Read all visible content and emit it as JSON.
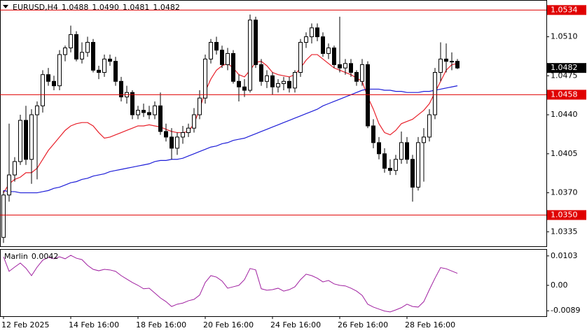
{
  "chart_data": [
    {
      "type": "candlestick",
      "title": "EURUSD,H4",
      "title_values": [
        "1.0488",
        "1.0490",
        "1.0481",
        "1.0482"
      ],
      "categories": [
        "12 Feb 2025",
        null,
        null,
        null,
        null,
        null,
        null,
        null,
        null,
        null,
        null,
        null,
        "14 Feb 16:00",
        null,
        null,
        null,
        null,
        null,
        null,
        null,
        null,
        null,
        null,
        null,
        "18 Feb 16:00",
        null,
        null,
        null,
        null,
        null,
        null,
        null,
        null,
        null,
        null,
        null,
        "20 Feb 16:00",
        null,
        null,
        null,
        null,
        null,
        null,
        null,
        null,
        null,
        null,
        null,
        "24 Feb 16:00",
        null,
        null,
        null,
        null,
        null,
        null,
        null,
        null,
        null,
        null,
        null,
        "26 Feb 16:00",
        null,
        null,
        null,
        null,
        null,
        null,
        null,
        null,
        null,
        null,
        null,
        "28 Feb 16:00",
        null,
        null,
        null,
        null,
        null,
        null,
        null,
        null,
        null
      ],
      "open": [
        1.033,
        1.0368,
        1.0386,
        1.0398,
        1.0435,
        1.04,
        1.044,
        1.0448,
        1.0476,
        1.047,
        1.0466,
        1.0494,
        1.05,
        1.0512,
        1.049,
        1.0496,
        1.0505,
        1.048,
        1.0478,
        1.049,
        1.0488,
        1.047,
        1.0456,
        1.046,
        1.044,
        1.0444,
        1.0442,
        1.044,
        1.0448,
        1.0425,
        1.042,
        1.041,
        1.042,
        1.0424,
        1.0428,
        1.044,
        1.0455,
        1.049,
        1.0505,
        1.0498,
        1.0485,
        1.0495,
        1.047,
        1.0465,
        1.0462,
        1.0525,
        1.0485,
        1.047,
        1.0475,
        1.0465,
        1.0468,
        1.047,
        1.0464,
        1.0478,
        1.0505,
        1.051,
        1.0518,
        1.051,
        1.0495,
        1.05,
        1.0485,
        1.0482,
        1.0486,
        1.0478,
        1.047,
        1.0485,
        1.043,
        1.0415,
        1.0405,
        1.0392,
        1.039,
        1.04,
        1.0415,
        1.04,
        1.0375,
        1.0415,
        1.042,
        1.044,
        1.0478,
        1.049,
        1.0488,
        1.0488
      ],
      "high": [
        1.0372,
        1.0432,
        1.0402,
        1.044,
        1.0448,
        1.0445,
        1.0452,
        1.048,
        1.0482,
        1.0475,
        1.0498,
        1.0502,
        1.052,
        1.0515,
        1.0505,
        1.051,
        1.0508,
        1.0484,
        1.0494,
        1.0494,
        1.0492,
        1.0474,
        1.0466,
        1.0462,
        1.0448,
        1.045,
        1.0448,
        1.0452,
        1.046,
        1.0432,
        1.0428,
        1.0424,
        1.043,
        1.0432,
        1.0446,
        1.0462,
        1.0494,
        1.0508,
        1.051,
        1.0502,
        1.05,
        1.0498,
        1.0476,
        1.0472,
        1.053,
        1.0528,
        1.049,
        1.048,
        1.0478,
        1.0472,
        1.0474,
        1.0474,
        1.048,
        1.0508,
        1.0514,
        1.0522,
        1.0522,
        1.0514,
        1.0504,
        1.0502,
        1.0528,
        1.049,
        1.049,
        1.048,
        1.049,
        1.0488,
        1.0436,
        1.042,
        1.041,
        1.04,
        1.0404,
        1.0425,
        1.042,
        1.0404,
        1.042,
        1.0428,
        1.0445,
        1.0482,
        1.0505,
        1.0504,
        1.0496,
        1.049
      ],
      "low": [
        1.0325,
        1.0362,
        1.038,
        1.0395,
        1.0395,
        1.0378,
        1.0382,
        1.0442,
        1.0466,
        1.0462,
        1.0462,
        1.0488,
        1.0496,
        1.0488,
        1.0486,
        1.0492,
        1.0478,
        1.0472,
        1.0474,
        1.0484,
        1.0466,
        1.0452,
        1.045,
        1.0436,
        1.0436,
        1.0438,
        1.0436,
        1.0436,
        1.0422,
        1.0416,
        1.04,
        1.0404,
        1.0414,
        1.042,
        1.0424,
        1.0436,
        1.045,
        1.0486,
        1.0494,
        1.0482,
        1.048,
        1.0468,
        1.0452,
        1.0456,
        1.046,
        1.0482,
        1.0466,
        1.0464,
        1.0458,
        1.046,
        1.0462,
        1.046,
        1.046,
        1.0474,
        1.05,
        1.0504,
        1.0506,
        1.0492,
        1.049,
        1.0482,
        1.0478,
        1.0476,
        1.0474,
        1.0466,
        1.0466,
        1.0428,
        1.041,
        1.04,
        1.0388,
        1.0386,
        1.0386,
        1.0396,
        1.0396,
        1.0362,
        1.0372,
        1.038,
        1.0416,
        1.0436,
        1.047,
        1.0478,
        1.048,
        1.0481
      ],
      "close": [
        1.0368,
        1.0386,
        1.0398,
        1.0435,
        1.04,
        1.044,
        1.0448,
        1.0476,
        1.047,
        1.0466,
        1.0494,
        1.05,
        1.0512,
        1.049,
        1.0496,
        1.0505,
        1.048,
        1.0478,
        1.049,
        1.0488,
        1.047,
        1.0456,
        1.046,
        1.044,
        1.0444,
        1.0442,
        1.044,
        1.0448,
        1.0425,
        1.042,
        1.041,
        1.042,
        1.0424,
        1.0428,
        1.044,
        1.0455,
        1.049,
        1.0505,
        1.0498,
        1.0485,
        1.0495,
        1.047,
        1.0465,
        1.0462,
        1.0525,
        1.0485,
        1.047,
        1.0475,
        1.0465,
        1.0468,
        1.047,
        1.0464,
        1.0478,
        1.0505,
        1.051,
        1.0518,
        1.051,
        1.0495,
        1.05,
        1.0485,
        1.0482,
        1.0486,
        1.0478,
        1.047,
        1.0485,
        1.043,
        1.0415,
        1.0405,
        1.0392,
        1.039,
        1.04,
        1.0415,
        1.04,
        1.0375,
        1.0415,
        1.042,
        1.044,
        1.0478,
        1.049,
        1.0488,
        1.0488,
        1.0482
      ],
      "lines": [
        {
          "color": "#e8202a",
          "values": [
            1.037,
            1.0378,
            1.0382,
            1.0384,
            1.0388,
            1.0388,
            1.0392,
            1.04,
            1.0408,
            1.0414,
            1.042,
            1.0426,
            1.043,
            1.0432,
            1.0433,
            1.0433,
            1.043,
            1.0424,
            1.0419,
            1.042,
            1.0422,
            1.0424,
            1.0426,
            1.0428,
            1.043,
            1.043,
            1.0431,
            1.043,
            1.0429,
            1.0427,
            1.0425,
            1.0424,
            1.0424,
            1.0425,
            1.0432,
            1.0445,
            1.0461,
            1.0472,
            1.048,
            1.0484,
            1.0486,
            1.0482,
            1.0476,
            1.0474,
            1.048,
            1.0487,
            1.0488,
            1.0484,
            1.0478,
            1.0476,
            1.0475,
            1.0474,
            1.0476,
            1.0482,
            1.0489,
            1.0494,
            1.0494,
            1.049,
            1.0486,
            1.0482,
            1.048,
            1.0478,
            1.0476,
            1.0473,
            1.047,
            1.0456,
            1.0445,
            1.0432,
            1.0424,
            1.0422,
            1.0426,
            1.0432,
            1.0434,
            1.0436,
            1.044,
            1.0444,
            1.045,
            1.046,
            1.047,
            1.048,
            1.0485,
            1.0486
          ]
        },
        {
          "color": "#1e1ed8",
          "values": [
            1.0372,
            1.0371,
            1.0371,
            1.037,
            1.037,
            1.037,
            1.037,
            1.0371,
            1.0372,
            1.0374,
            1.0375,
            1.0377,
            1.0379,
            1.038,
            1.0382,
            1.0383,
            1.0385,
            1.0386,
            1.0387,
            1.0389,
            1.039,
            1.0391,
            1.0392,
            1.0393,
            1.0394,
            1.0395,
            1.0396,
            1.0398,
            1.0399,
            1.0399,
            1.04,
            1.04,
            1.0401,
            1.0403,
            1.0405,
            1.0407,
            1.0409,
            1.0411,
            1.0412,
            1.0414,
            1.0415,
            1.0417,
            1.0418,
            1.0419,
            1.0421,
            1.0423,
            1.0425,
            1.0427,
            1.0429,
            1.0431,
            1.0433,
            1.0435,
            1.0437,
            1.0439,
            1.0441,
            1.0443,
            1.0445,
            1.0448,
            1.045,
            1.0452,
            1.0454,
            1.0456,
            1.0458,
            1.046,
            1.0462,
            1.0463,
            1.0463,
            1.0463,
            1.0462,
            1.0462,
            1.0461,
            1.0461,
            1.046,
            1.046,
            1.046,
            1.0461,
            1.0461,
            1.0462,
            1.0463,
            1.0464,
            1.0465,
            1.0466
          ]
        }
      ],
      "levels": [
        1.0534,
        1.0458,
        {
          "value": 1.035,
          "label": "1.0350"
        }
      ],
      "level_color": "#e00000",
      "up_color": "#ffffff",
      "down_color": "#000000",
      "ylim": [
        1.0322,
        1.0543
      ],
      "yticks": [
        {
          "value": 1.051,
          "label": "1.0510"
        },
        1.0475,
        {
          "value": 1.044,
          "label": "1.0440"
        },
        1.0405,
        {
          "value": 1.037,
          "label": "1.0370"
        },
        1.0335
      ]
    },
    {
      "type": "line",
      "title": "Marlin",
      "color": "#a020a0",
      "values": [
        0.01,
        0.0049,
        0.0064,
        0.0078,
        0.006,
        0.0034,
        0.0064,
        0.0088,
        0.0098,
        0.0093,
        0.01,
        0.0093,
        0.0105,
        0.0095,
        0.009,
        0.007,
        0.0056,
        0.0051,
        0.0056,
        0.0054,
        0.0049,
        0.0034,
        0.0022,
        0.001,
        0.0,
        -0.0012,
        -0.001,
        -0.0027,
        -0.0044,
        -0.0057,
        -0.0074,
        -0.0066,
        -0.0062,
        -0.0054,
        -0.0049,
        -0.0034,
        0.001,
        0.0034,
        0.0029,
        0.0015,
        -0.001,
        -0.0005,
        0.0,
        0.002,
        0.0059,
        0.0054,
        -0.0012,
        -0.0017,
        -0.0015,
        -0.001,
        -0.002,
        -0.0015,
        -0.0005,
        0.002,
        0.0039,
        0.0034,
        0.0025,
        0.0012,
        0.0017,
        0.0005,
        0.0,
        -0.0002,
        -0.001,
        -0.002,
        -0.0035,
        -0.0066,
        -0.0076,
        -0.0083,
        -0.009,
        -0.0093,
        -0.0086,
        -0.0078,
        -0.0066,
        -0.0074,
        -0.0076,
        -0.0057,
        -0.0015,
        0.0025,
        0.0062,
        0.0058,
        0.005,
        0.0042
      ],
      "ylim": [
        -0.0108,
        0.0127
      ],
      "yticks": [
        0.0103,
        {
          "value": 0,
          "label": "0.00"
        },
        -0.0089
      ]
    }
  ]
}
